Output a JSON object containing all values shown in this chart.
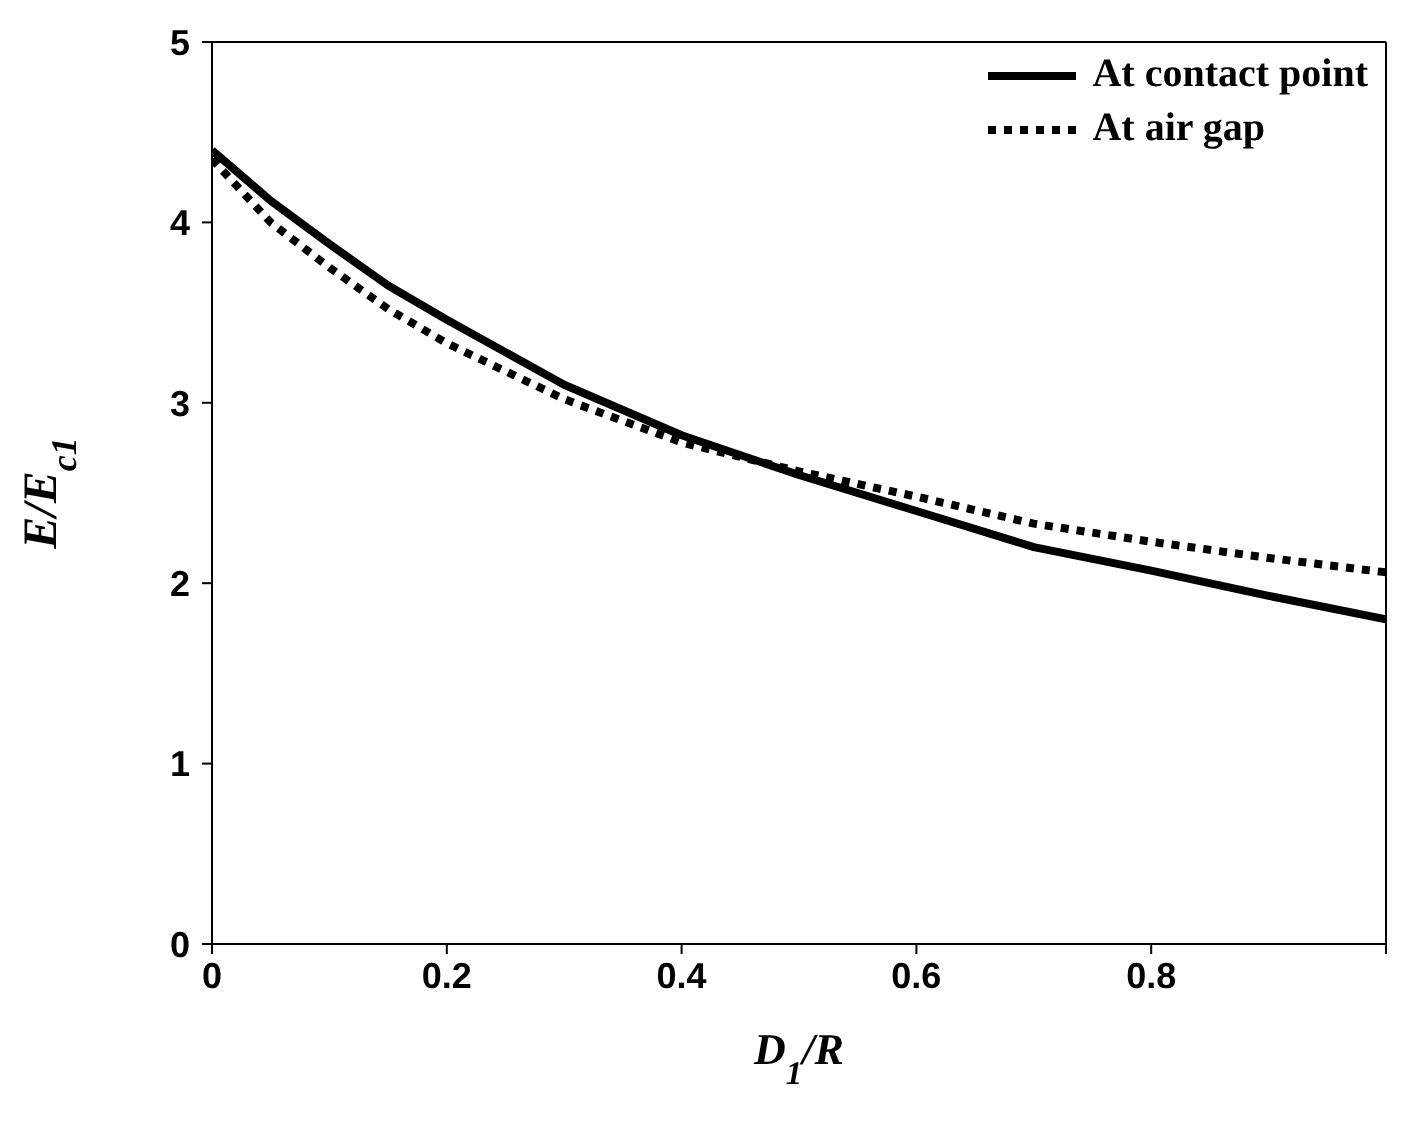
{
  "chart_data": {
    "type": "line",
    "xlabel": "D$_{1}$/R",
    "ylabel": "E/E$_{c1}$",
    "x": [
      0,
      0.05,
      0.1,
      0.15,
      0.2,
      0.3,
      0.4,
      0.5,
      0.6,
      0.7,
      0.8,
      0.9,
      1.0
    ],
    "series": [
      {
        "name": "At contact point",
        "color": "#000000",
        "line_style": "solid",
        "values": [
          4.4,
          4.12,
          3.88,
          3.65,
          3.46,
          3.1,
          2.82,
          2.6,
          2.4,
          2.2,
          2.07,
          1.93,
          1.8
        ]
      },
      {
        "name": "At air gap",
        "color": "#000000",
        "line_style": "dotted",
        "values": [
          4.35,
          4.0,
          3.75,
          3.52,
          3.33,
          3.02,
          2.78,
          2.62,
          2.48,
          2.33,
          2.23,
          2.14,
          2.06
        ]
      }
    ],
    "xlim": [
      0,
      1
    ],
    "xticks": [
      0,
      0.2,
      0.4,
      0.6,
      0.8,
      {
        "value": 1,
        "label": null
      }
    ],
    "ylim": [
      0,
      5
    ],
    "yticks": [
      0,
      1,
      2,
      3,
      4,
      5
    ],
    "grid": false,
    "legend": "top right",
    "marker": "none"
  }
}
